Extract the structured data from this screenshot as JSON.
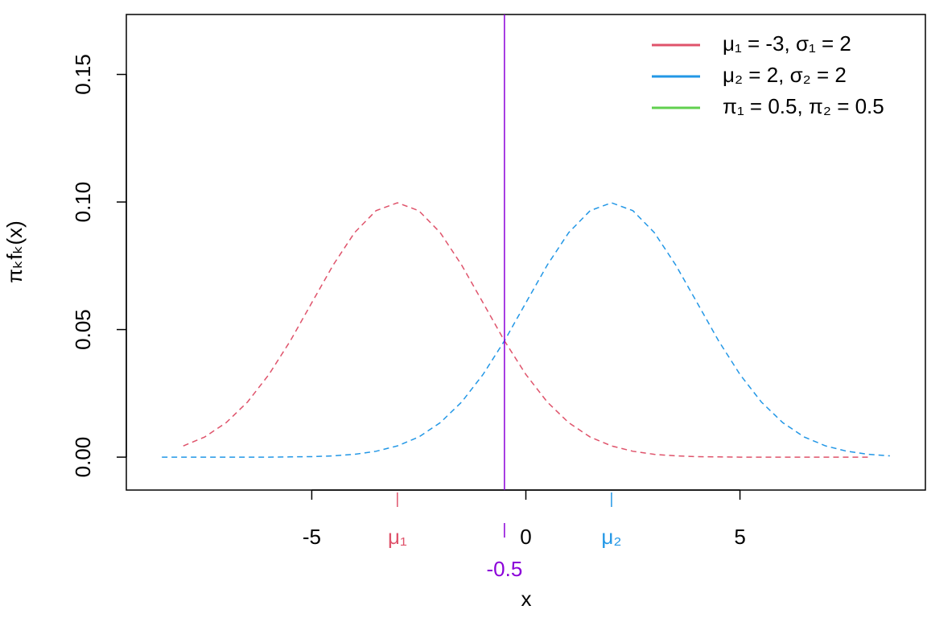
{
  "chart_data": {
    "type": "line",
    "x_label": "x",
    "y_label": "πₖfₖ(x)",
    "xlim": [
      -9.33,
      9.33
    ],
    "ylim": [
      -0.0129,
      0.1735
    ],
    "xticks": [
      -5,
      0,
      5
    ],
    "yticks": [
      {
        "value": 0,
        "label": "0.00"
      },
      {
        "value": 0.05,
        "label": "0.05"
      },
      {
        "value": 0.1,
        "label": "0.10"
      },
      {
        "value": 0.15,
        "label": "0.15"
      }
    ],
    "mean_ticks": [
      {
        "value": -3,
        "label": "μ₁",
        "color": "#DF536B"
      },
      {
        "value": 2,
        "label": "μ₂",
        "color": "#2297E6"
      }
    ],
    "boundary": -0.5,
    "boundary_color": "#8B00D9",
    "x": [
      -8.5,
      -8,
      -7.5,
      -7,
      -6.5,
      -6,
      -5.5,
      -5,
      -4.5,
      -4,
      -3.5,
      -3,
      -2.5,
      -2,
      -1.5,
      -1,
      -0.5,
      0,
      0.5,
      1,
      1.5,
      2,
      2.5,
      3,
      3.5,
      4,
      4.5,
      5,
      5.5,
      6,
      6.5,
      7,
      7.5,
      8,
      8.5
    ],
    "series": [
      {
        "color": "#DF536B",
        "values": [
          null,
          0.0044,
          0.0079,
          0.0135,
          0.0216,
          0.0324,
          0.0456,
          0.0605,
          0.0753,
          0.088,
          0.0966,
          0.0997,
          0.0966,
          0.088,
          0.0753,
          0.0605,
          0.0456,
          0.0324,
          0.0216,
          0.0135,
          0.0079,
          0.0044,
          0.0023,
          0.0011,
          0.0005,
          0.0002,
          0.0001,
          0,
          0,
          0,
          0,
          0,
          0,
          0,
          null
        ]
      },
      {
        "color": "#2297E6",
        "values": [
          0,
          0,
          0,
          0,
          0,
          0,
          0.0001,
          0.0002,
          0.0005,
          0.0011,
          0.0023,
          0.0044,
          0.0079,
          0.0135,
          0.0216,
          0.0324,
          0.0456,
          0.0605,
          0.0753,
          0.088,
          0.0966,
          0.0997,
          0.0966,
          0.088,
          0.0753,
          0.0605,
          0.0456,
          0.0324,
          0.0216,
          0.0135,
          0.0079,
          0.0044,
          0.0023,
          0.0011,
          0.0005
        ]
      }
    ],
    "legend": [
      {
        "label": "μ₁ = -3, σ₁ = 2",
        "color": "#DF536B"
      },
      {
        "label": "μ₂ = 2, σ₂ = 2",
        "color": "#2297E6"
      },
      {
        "label": "π₁ = 0.5, π₂ = 0.5",
        "color": "#61D04F"
      }
    ],
    "legend_position": "top-right"
  }
}
